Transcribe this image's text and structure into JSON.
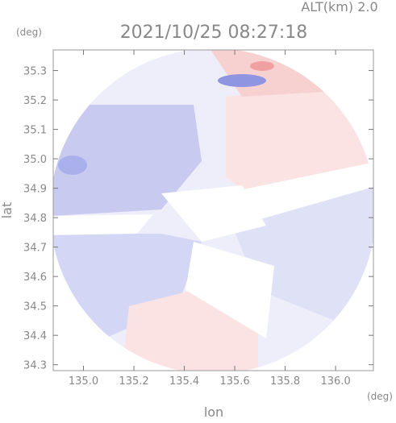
{
  "chart_data": {
    "type": "map",
    "title": "2021/10/25 08:27:18",
    "subtitle": "ALT(km) 2.0",
    "x_label": "lon",
    "y_label": "lat",
    "x_unit": "(deg)",
    "y_unit": "(deg)",
    "xlim": [
      134.88,
      136.15
    ],
    "ylim": [
      34.28,
      35.37
    ],
    "xticks": [
      {
        "value": 135,
        "label": "135.0"
      },
      135.2,
      135.4,
      135.6,
      135.8,
      {
        "value": 136,
        "label": "136.0"
      }
    ],
    "yticks": [
      35.3,
      35.2,
      35.1,
      {
        "value": 35,
        "label": "35.0"
      },
      34.9,
      34.8,
      34.7,
      34.6,
      34.5,
      34.4,
      34.3
    ]
  }
}
